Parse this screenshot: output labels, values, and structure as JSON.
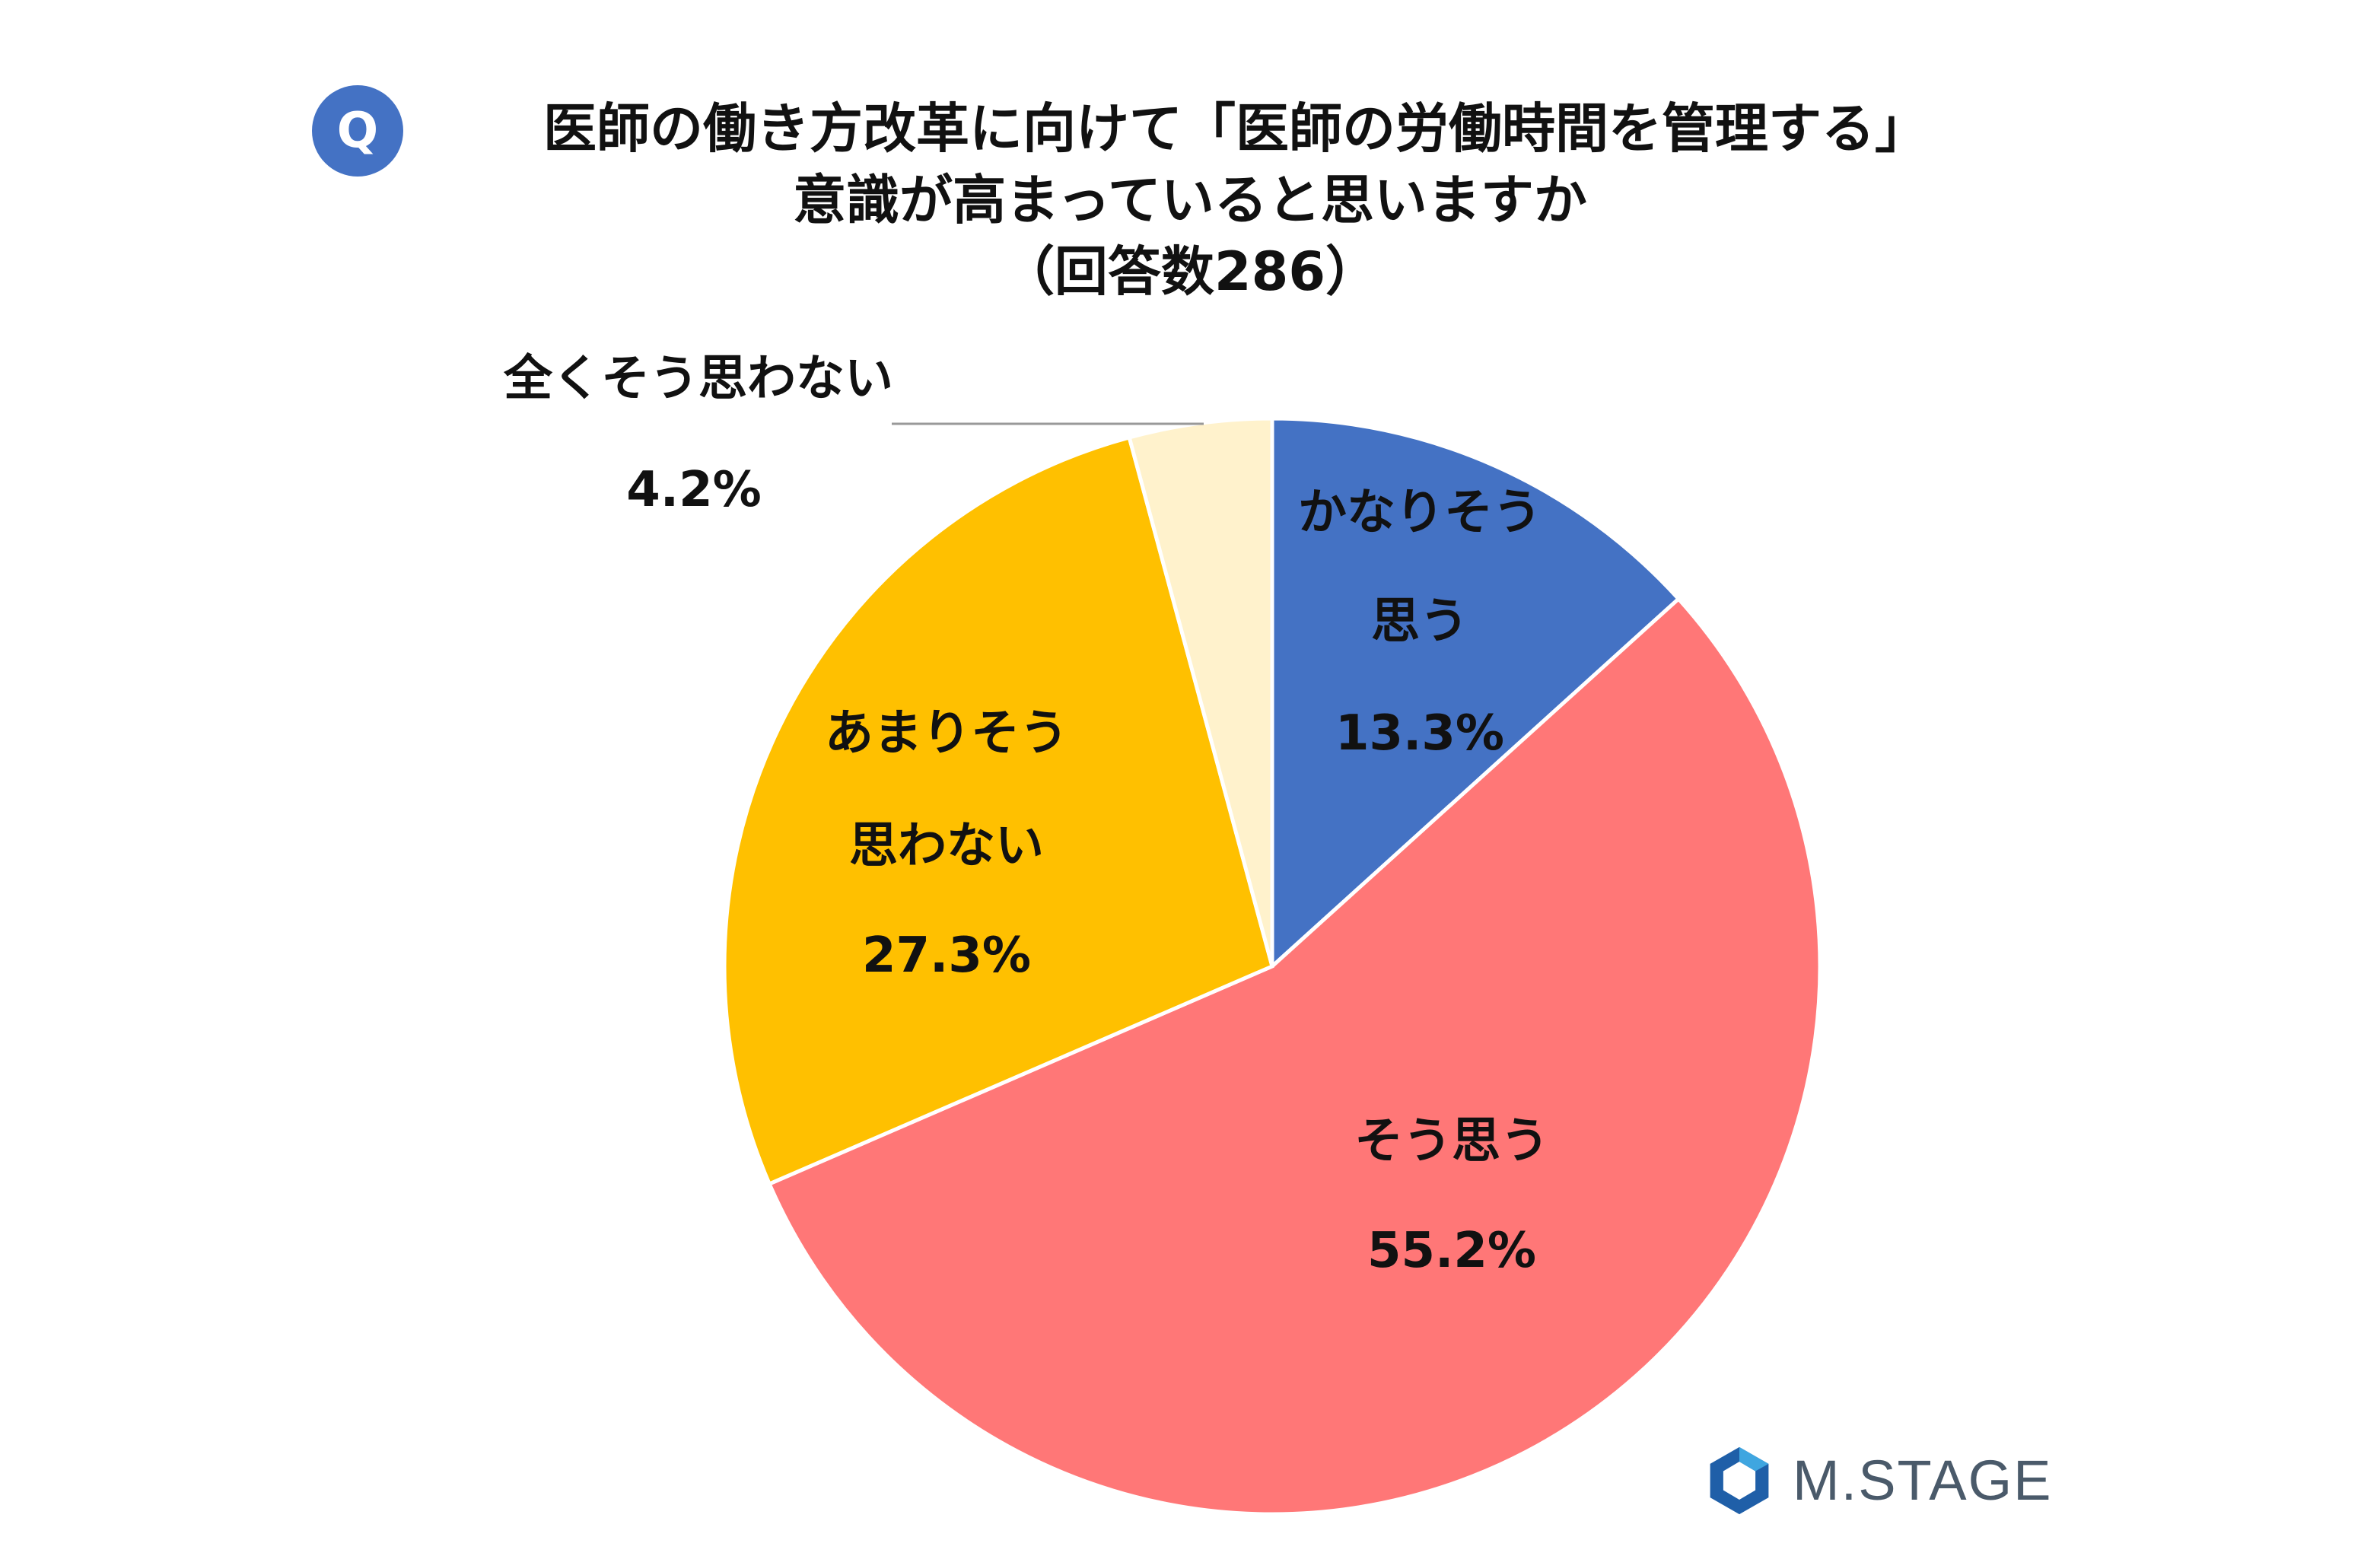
{
  "header": {
    "badge": "Q",
    "title_lines": [
      "医師の働き方改革に向けて「医師の労働時間を管理する」",
      "意識が高まっていると思いますか",
      "（回答数286）"
    ]
  },
  "chart_data": {
    "type": "pie",
    "title": "医師の働き方改革に向けて「医師の労働時間を管理する」意識が高まっていると思いますか（回答数286）",
    "start_angle": "12 o'clock, clockwise",
    "slices": [
      {
        "label_lines": [
          "かなりそう",
          "思う"
        ],
        "value": 13.3,
        "value_label": "13.3%",
        "color": "#4472C4"
      },
      {
        "label_lines": [
          "そう思う"
        ],
        "value": 55.2,
        "value_label": "55.2%",
        "color": "#FF7777"
      },
      {
        "label_lines": [
          "あまりそう",
          "思わない"
        ],
        "value": 27.3,
        "value_label": "27.3%",
        "color": "#FFC000"
      },
      {
        "label_lines": [
          "全くそう思わない"
        ],
        "value": 4.2,
        "value_label": "4.2%",
        "color": "#FFF2CC"
      }
    ]
  },
  "logo": {
    "text": "M.STAGE",
    "icon": "hexagon-logo-icon",
    "color": "#4a5a6a"
  }
}
